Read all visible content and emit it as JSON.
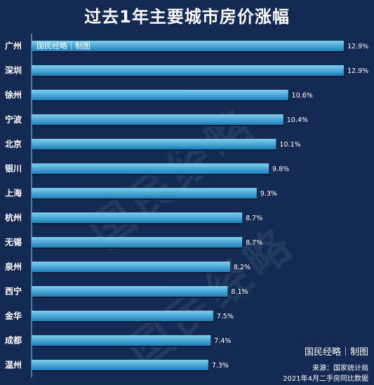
{
  "header": {
    "title": "过去1年主要城市房价涨幅"
  },
  "watermark": {
    "text": "国民经略"
  },
  "credit": {
    "text": "国民经略｜制图"
  },
  "source": {
    "line1": "来源：国家统计局",
    "line2": "2021年4月二手房同比数据"
  },
  "colors": {
    "background": "#142a52",
    "bar_top": "#7fd0f0",
    "bar_bottom": "#1c7fb8",
    "axis": "#4a9fd0",
    "text": "#ffffff"
  },
  "chart_data": {
    "type": "bar",
    "orientation": "horizontal",
    "categories": [
      "广州",
      "深圳",
      "徐州",
      "宁波",
      "北京",
      "银川",
      "上海",
      "杭州",
      "无锡",
      "泉州",
      "西宁",
      "金华",
      "成都",
      "温州"
    ],
    "values": [
      12.9,
      12.9,
      10.6,
      10.4,
      10.1,
      9.8,
      9.3,
      8.7,
      8.7,
      8.2,
      8.1,
      7.5,
      7.4,
      7.3
    ],
    "value_labels": [
      "12.9%",
      "12.9%",
      "10.6%",
      "10.4%",
      "10.1%",
      "9.8%",
      "9.3%",
      "8.7%",
      "8.7%",
      "8.2%",
      "8.1%",
      "7.5%",
      "7.4%",
      "7.3%"
    ],
    "unit": "%",
    "xlim": [
      0,
      13.5
    ],
    "grid": false,
    "legend": "none"
  }
}
